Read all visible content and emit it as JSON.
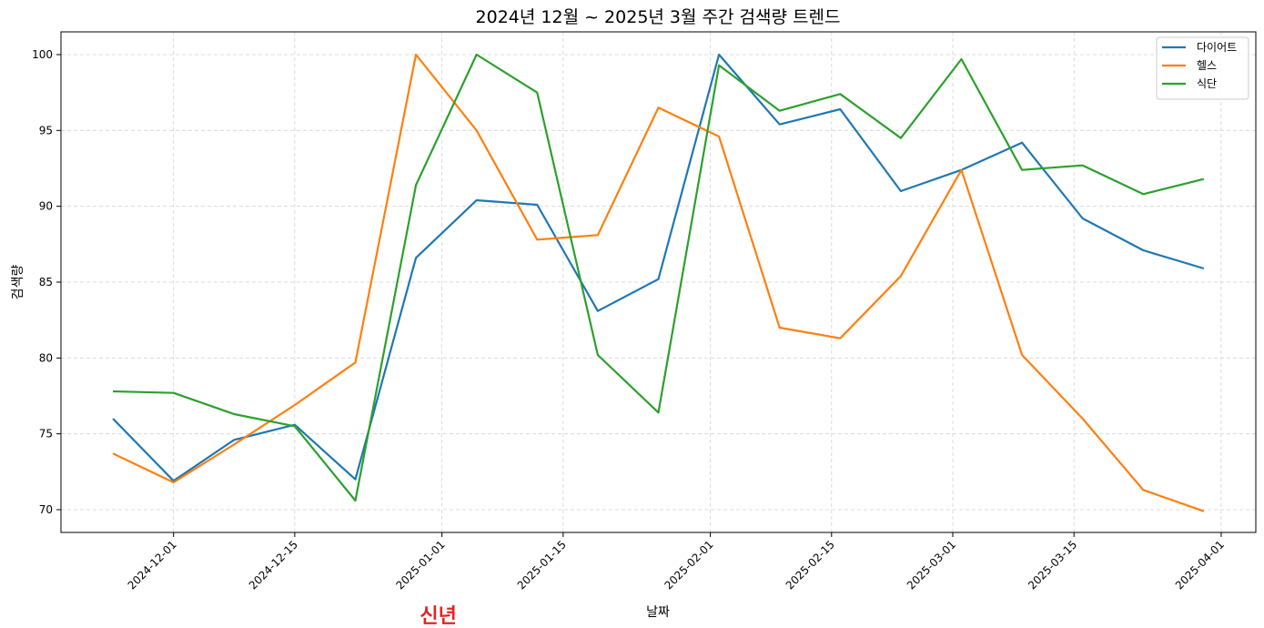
{
  "chart_data": {
    "type": "line",
    "title": "2024년 12월 ~ 2025년 3월 주간 검색량 트렌드",
    "xlabel": "날짜",
    "ylabel": "검색량",
    "x": [
      "2024-11-24",
      "2024-12-01",
      "2024-12-08",
      "2024-12-15",
      "2024-12-22",
      "2024-12-29",
      "2025-01-05",
      "2025-01-12",
      "2025-01-19",
      "2025-01-26",
      "2025-02-02",
      "2025-02-09",
      "2025-02-16",
      "2025-02-23",
      "2025-03-02",
      "2025-03-09",
      "2025-03-16",
      "2025-03-23",
      "2025-03-30"
    ],
    "series": [
      {
        "name": "다이어트",
        "color": "#1f77b4",
        "values": [
          76.0,
          71.9,
          74.6,
          75.6,
          72.0,
          86.6,
          90.4,
          90.1,
          83.1,
          85.2,
          100.0,
          95.4,
          96.4,
          91.0,
          92.4,
          94.2,
          89.2,
          87.1,
          85.9
        ]
      },
      {
        "name": "헬스",
        "color": "#ff7f0e",
        "values": [
          73.7,
          71.8,
          74.3,
          76.9,
          79.7,
          100.0,
          95.0,
          87.8,
          88.1,
          96.5,
          94.6,
          82.0,
          81.3,
          85.4,
          92.4,
          80.2,
          76.0,
          71.3,
          69.9
        ]
      },
      {
        "name": "식단",
        "color": "#2ca02c",
        "values": [
          77.8,
          77.7,
          76.3,
          75.5,
          70.6,
          91.4,
          100.0,
          97.5,
          80.2,
          76.4,
          99.3,
          96.3,
          97.4,
          94.5,
          99.7,
          92.4,
          92.7,
          90.8,
          91.8
        ]
      }
    ],
    "xticks": [
      "2024-12-01",
      "2024-12-15",
      "2025-01-01",
      "2025-01-15",
      "2025-02-01",
      "2025-02-15",
      "2025-03-01",
      "2025-03-15",
      "2025-04-01"
    ],
    "yticks": [
      70,
      75,
      80,
      85,
      90,
      95,
      100
    ],
    "ylim": [
      68.5,
      101.5
    ],
    "xlim": [
      "2024-11-18",
      "2025-04-05"
    ],
    "grid": true,
    "legend_position": "top-right",
    "annotation": {
      "text": "신년",
      "x": "2025-01-01",
      "color": "#e8231f"
    }
  }
}
